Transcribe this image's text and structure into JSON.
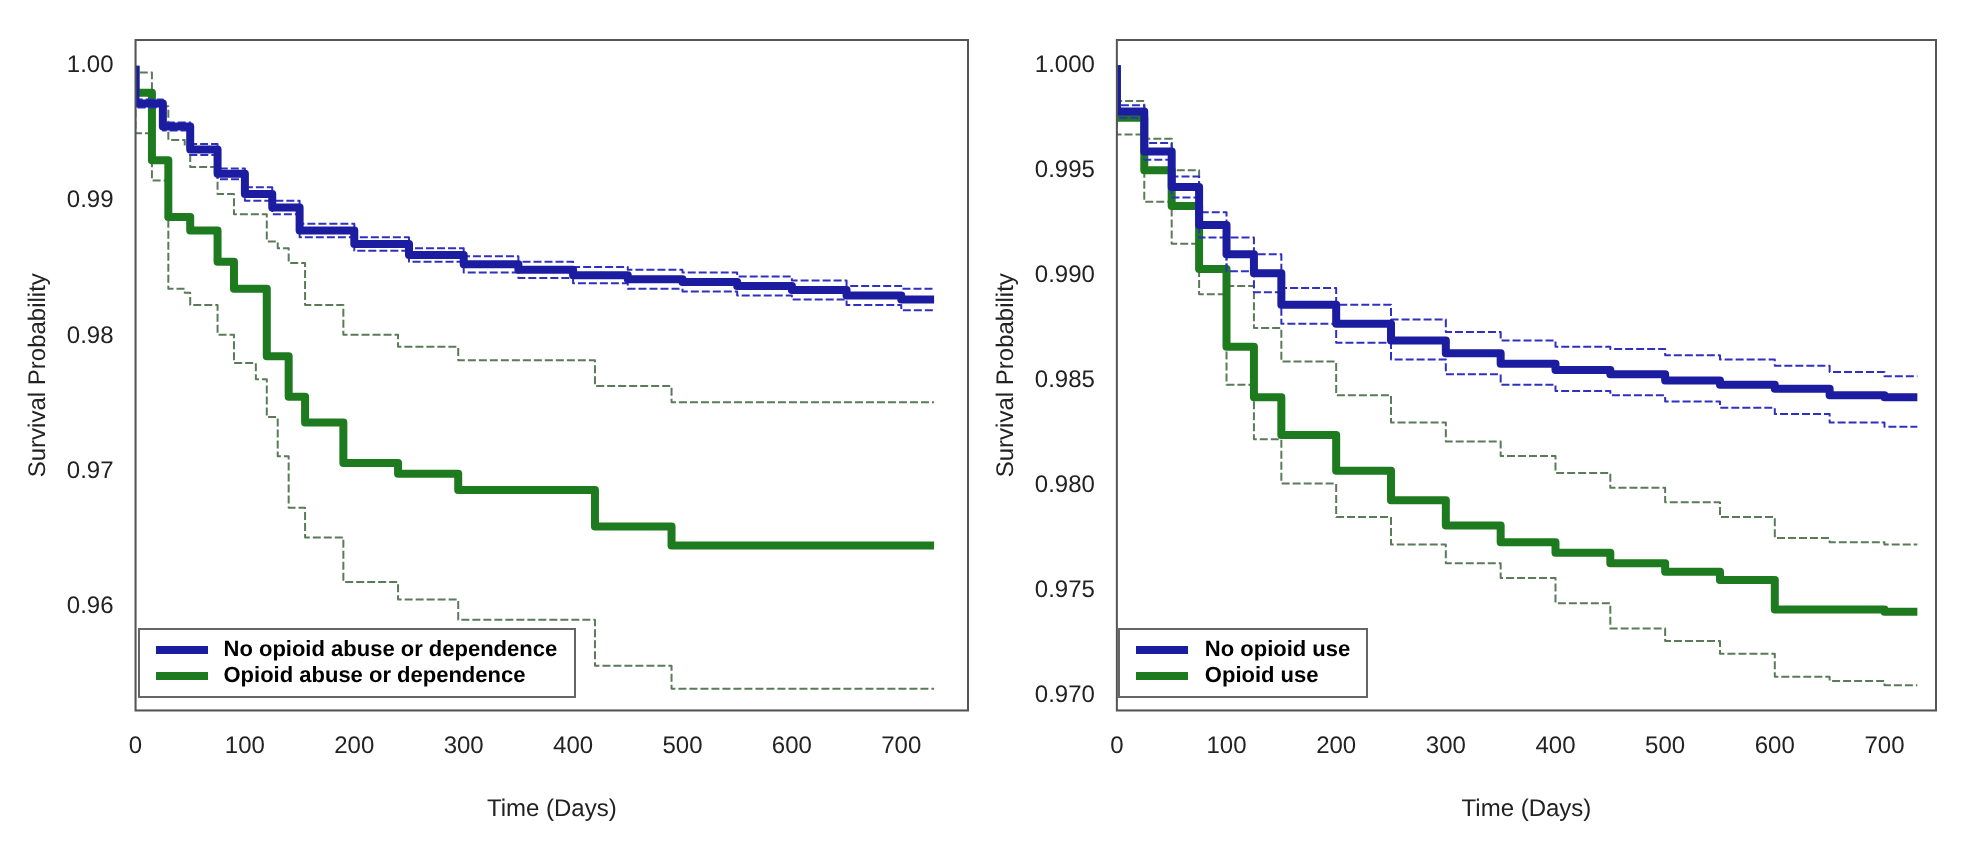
{
  "chart_data": [
    {
      "type": "step",
      "xlabel": "Time (Days)",
      "ylabel": "Survival Probability",
      "xlim": [
        0,
        761
      ],
      "xticks": [
        0,
        100,
        200,
        300,
        400,
        500,
        600,
        700
      ],
      "ylim": [
        0.9523,
        1.0019
      ],
      "yticks": [
        0.96,
        0.97,
        0.98,
        0.99,
        {
          "value": 1.0,
          "label": "1.00"
        }
      ],
      "grid": false,
      "legend": "bottom left",
      "line_style": "solid",
      "series": [
        {
          "name": "No opioid abuse or dependence",
          "color": "#1c1ca0",
          "x": [
            0,
            25,
            50,
            75,
            100,
            125,
            150,
            200,
            250,
            300,
            350,
            400,
            450,
            500,
            550,
            600,
            650,
            700,
            730
          ],
          "values": [
            1.0,
            0.9972,
            0.9955,
            0.9938,
            0.992,
            0.9905,
            0.9895,
            0.9878,
            0.9868,
            0.986,
            0.9853,
            0.9849,
            0.9845,
            0.9842,
            0.984,
            0.9837,
            0.9834,
            0.983,
            0.9827
          ]
        },
        {
          "color": "#3030c0",
          "line_style": "dashed",
          "x": [
            0,
            25,
            50,
            75,
            100,
            125,
            150,
            200,
            250,
            300,
            350,
            400,
            450,
            500,
            550,
            600,
            650,
            700,
            730
          ],
          "values": [
            1.0,
            0.9975,
            0.9958,
            0.9942,
            0.9924,
            0.991,
            0.99,
            0.9883,
            0.9873,
            0.9865,
            0.9859,
            0.9855,
            0.9851,
            0.9849,
            0.9847,
            0.9844,
            0.9841,
            0.9837,
            0.9835
          ]
        },
        {
          "color": "#3030c0",
          "line_style": "dashed",
          "x": [
            0,
            25,
            50,
            75,
            100,
            125,
            150,
            200,
            250,
            300,
            350,
            400,
            450,
            500,
            550,
            600,
            650,
            700,
            730
          ],
          "values": [
            1.0,
            0.9969,
            0.9952,
            0.9934,
            0.9916,
            0.99,
            0.989,
            0.9873,
            0.9863,
            0.9855,
            0.9847,
            0.9843,
            0.9839,
            0.9835,
            0.9833,
            0.983,
            0.9827,
            0.9823,
            0.9819
          ]
        },
        {
          "name": "Opioid abuse or dependence",
          "color": "#1e7a1e",
          "x": [
            0,
            15,
            30,
            45,
            50,
            75,
            90,
            110,
            120,
            130,
            140,
            155,
            190,
            240,
            295,
            420,
            490,
            530,
            730
          ],
          "values": [
            1.0,
            0.998,
            0.993,
            0.9888,
            0.9888,
            0.9878,
            0.9855,
            0.9835,
            0.9835,
            0.9785,
            0.9785,
            0.9755,
            0.9736,
            0.9706,
            0.9698,
            0.9686,
            0.9659,
            0.9645,
            0.9645
          ]
        },
        {
          "color": "#5a7a5a",
          "line_style": "dashed",
          "x": [
            0,
            15,
            30,
            45,
            50,
            75,
            90,
            110,
            120,
            130,
            140,
            155,
            190,
            240,
            295,
            420,
            490,
            530,
            730
          ],
          "values": [
            1.0,
            0.9995,
            0.997,
            0.9945,
            0.994,
            0.9925,
            0.9905,
            0.989,
            0.989,
            0.987,
            0.9865,
            0.9854,
            0.9823,
            0.9801,
            0.9792,
            0.9782,
            0.9763,
            0.9751,
            0.9751
          ]
        },
        {
          "color": "#5a7a5a",
          "line_style": "dashed",
          "x": [
            0,
            15,
            30,
            45,
            50,
            75,
            90,
            110,
            120,
            130,
            140,
            155,
            190,
            240,
            295,
            420,
            490,
            530,
            730
          ],
          "values": [
            1.0,
            0.995,
            0.9915,
            0.9835,
            0.9832,
            0.9823,
            0.9801,
            0.978,
            0.9768,
            0.974,
            0.9711,
            0.9673,
            0.9651,
            0.9618,
            0.9605,
            0.959,
            0.9556,
            0.9539,
            0.9539
          ]
        }
      ]
    },
    {
      "type": "step",
      "xlabel": "Time (Days)",
      "ylabel": "Survival Probability",
      "xlim": [
        0,
        747
      ],
      "xticks": [
        0,
        100,
        200,
        300,
        400,
        500,
        600,
        700
      ],
      "ylim": [
        0.9693,
        1.0012
      ],
      "yticks": [
        {
          "value": 0.97,
          "label": "0.970"
        },
        {
          "value": 0.975,
          "label": "0.975"
        },
        {
          "value": 0.98,
          "label": "0.980"
        },
        {
          "value": 0.985,
          "label": "0.985"
        },
        {
          "value": 0.99,
          "label": "0.990"
        },
        {
          "value": 0.995,
          "label": "0.995"
        },
        {
          "value": 1.0,
          "label": "1.000"
        }
      ],
      "grid": false,
      "legend": "bottom left",
      "line_style": "solid",
      "series": [
        {
          "name": "No opioid use",
          "color": "#1c1ca0",
          "x": [
            0,
            25,
            50,
            75,
            100,
            125,
            150,
            200,
            250,
            300,
            350,
            400,
            450,
            500,
            550,
            600,
            650,
            700,
            730
          ],
          "values": [
            1.0,
            0.9978,
            0.9959,
            0.9942,
            0.9924,
            0.991,
            0.9901,
            0.9886,
            0.9877,
            0.9869,
            0.9863,
            0.9858,
            0.9855,
            0.9853,
            0.985,
            0.9848,
            0.9846,
            0.9843,
            0.9842
          ]
        },
        {
          "color": "#3030c0",
          "line_style": "dashed",
          "x": [
            0,
            25,
            50,
            75,
            100,
            125,
            150,
            200,
            250,
            300,
            350,
            400,
            450,
            500,
            550,
            600,
            650,
            700,
            730
          ],
          "values": [
            1.0,
            0.9981,
            0.9963,
            0.9947,
            0.993,
            0.9918,
            0.991,
            0.9894,
            0.9886,
            0.9879,
            0.9873,
            0.9869,
            0.9866,
            0.9865,
            0.9862,
            0.986,
            0.9857,
            0.9854,
            0.9852
          ]
        },
        {
          "color": "#3030c0",
          "line_style": "dashed",
          "x": [
            0,
            25,
            50,
            75,
            100,
            125,
            150,
            200,
            250,
            300,
            350,
            400,
            450,
            500,
            550,
            600,
            650,
            700,
            730
          ],
          "values": [
            1.0,
            0.9975,
            0.9955,
            0.9937,
            0.9918,
            0.9902,
            0.9892,
            0.9877,
            0.9868,
            0.986,
            0.9853,
            0.9848,
            0.9845,
            0.9843,
            0.984,
            0.9837,
            0.9834,
            0.983,
            0.9828
          ]
        },
        {
          "name": "Opioid use",
          "color": "#1e7a1e",
          "x": [
            0,
            25,
            50,
            75,
            100,
            125,
            150,
            200,
            250,
            300,
            350,
            400,
            450,
            500,
            550,
            600,
            650,
            700,
            730
          ],
          "values": [
            1.0,
            0.9975,
            0.995,
            0.9933,
            0.9903,
            0.9866,
            0.9842,
            0.9824,
            0.9807,
            0.9793,
            0.9781,
            0.9773,
            0.9768,
            0.9763,
            0.9759,
            0.9755,
            0.9741,
            0.9741,
            0.974
          ]
        },
        {
          "color": "#5a7a5a",
          "line_style": "dashed",
          "x": [
            0,
            25,
            50,
            75,
            100,
            125,
            150,
            200,
            250,
            300,
            350,
            400,
            450,
            500,
            550,
            600,
            650,
            700,
            730
          ],
          "values": [
            1.0,
            0.9983,
            0.9965,
            0.995,
            0.9925,
            0.9895,
            0.9875,
            0.9859,
            0.9843,
            0.983,
            0.9821,
            0.9814,
            0.9806,
            0.9799,
            0.9792,
            0.9785,
            0.9775,
            0.9773,
            0.9772
          ]
        },
        {
          "color": "#5a7a5a",
          "line_style": "dashed",
          "x": [
            0,
            25,
            50,
            75,
            100,
            125,
            150,
            200,
            250,
            300,
            350,
            400,
            450,
            500,
            550,
            600,
            650,
            700,
            730
          ],
          "values": [
            1.0,
            0.9967,
            0.9935,
            0.9915,
            0.9891,
            0.9848,
            0.9822,
            0.9801,
            0.9785,
            0.9772,
            0.9763,
            0.9756,
            0.9744,
            0.9732,
            0.9726,
            0.972,
            0.9709,
            0.9707,
            0.9705
          ]
        }
      ]
    }
  ]
}
